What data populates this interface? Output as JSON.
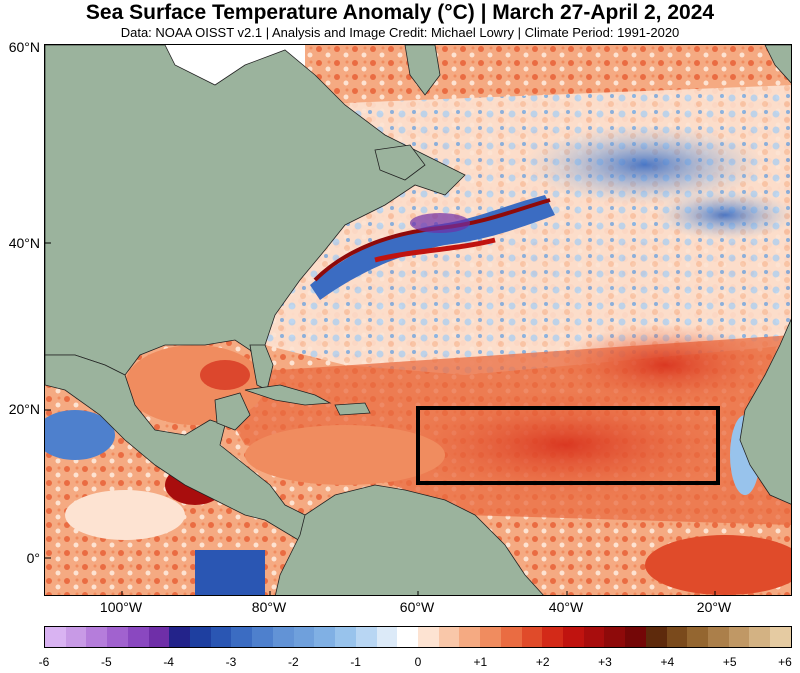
{
  "header": {
    "title": "Sea Surface Temperature Anomaly (°C) | March 27-April 2, 2024",
    "subtitle": "Data: NOAA OISST v2.1 | Analysis and Image Credit: Michael Lowry | Climate Period: 1991-2020"
  },
  "map": {
    "lat_labels": [
      "60°N",
      "40°N",
      "20°N",
      "0°"
    ],
    "lon_labels": [
      "100°W",
      "80°W",
      "60°W",
      "40°W",
      "20°W"
    ],
    "land_color": "#9bb39d",
    "box_color": "#000000"
  },
  "colorbar": {
    "labels": [
      "-6",
      "-5",
      "-4",
      "-3",
      "-2",
      "-1",
      "0",
      "+1",
      "+2",
      "+3",
      "+4",
      "+5",
      "+6"
    ],
    "colors": [
      "#d9b3f2",
      "#c89ae6",
      "#b57ddb",
      "#a162cf",
      "#8a48c0",
      "#6f2fa8",
      "#23238a",
      "#1e3fa0",
      "#2a56b3",
      "#3b6cc2",
      "#4e80cd",
      "#6293d6",
      "#6fa0dc",
      "#80b0e4",
      "#98c3ec",
      "#b8d6f3",
      "#dceaf8",
      "#ffffff",
      "#fde3d2",
      "#f9c7a9",
      "#f5aa82",
      "#f08c5f",
      "#ea6c42",
      "#e04b2a",
      "#d32a18",
      "#c0130f",
      "#a80d0d",
      "#8e0a0a",
      "#740707",
      "#5e2a0c",
      "#7a4a1c",
      "#946630",
      "#ab7f4a",
      "#c09865",
      "#d3b283",
      "#e5cba2"
    ]
  }
}
